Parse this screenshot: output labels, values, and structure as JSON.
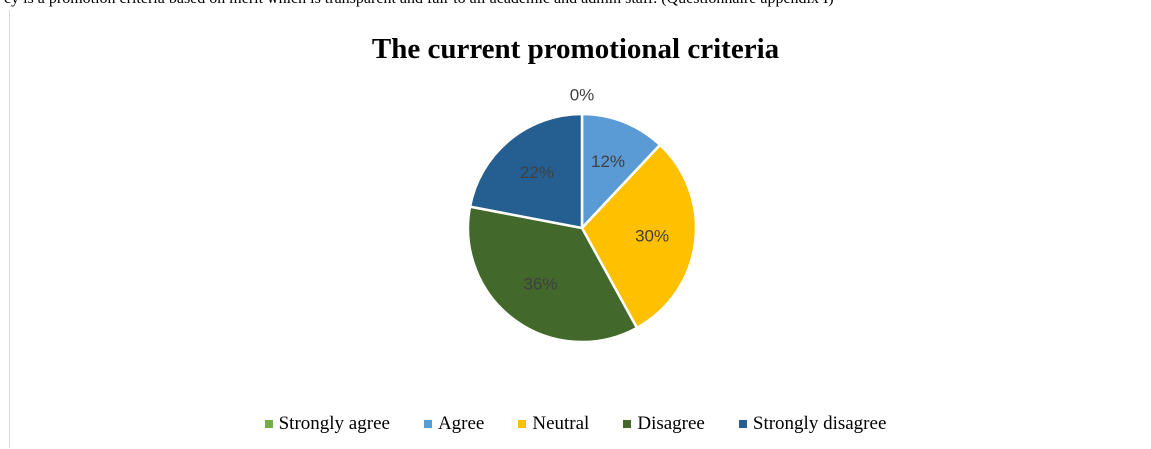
{
  "header_snippet": "cy is a promotion criteria based on merit which is transparent and fair to all academic and admin staff. (Questionnaire appendix I)",
  "chart_data": {
    "type": "pie",
    "title": "The current promotional criteria",
    "categories": [
      "Strongly agree",
      "Agree",
      "Neutral",
      "Disagree",
      "Strongly disagree"
    ],
    "values": [
      0,
      12,
      30,
      36,
      22
    ],
    "labels": [
      "0%",
      "12%",
      "30%",
      "36%",
      "22%"
    ],
    "colors": [
      "#70ad47",
      "#5b9bd5",
      "#ffc000",
      "#43682b",
      "#255e91"
    ],
    "legend_position": "bottom"
  }
}
